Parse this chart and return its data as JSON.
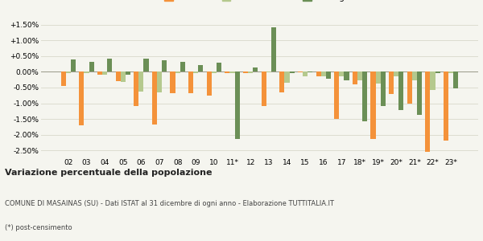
{
  "categories": [
    "02",
    "03",
    "04",
    "05",
    "06",
    "07",
    "08",
    "09",
    "10",
    "11*",
    "12",
    "13",
    "14",
    "15",
    "16",
    "17",
    "18*",
    "19*",
    "20*",
    "21*",
    "22*",
    "23*"
  ],
  "masainas": [
    -0.45,
    -1.7,
    -0.08,
    -0.3,
    -1.1,
    -1.68,
    -0.68,
    -0.68,
    -0.75,
    -0.05,
    -0.05,
    -1.1,
    -0.65,
    -0.02,
    -0.15,
    -1.5,
    -0.4,
    -2.15,
    -0.7,
    -1.0,
    -2.55,
    -2.2
  ],
  "provincia_su": [
    -0.05,
    -0.05,
    -0.08,
    -0.32,
    -0.62,
    -0.65,
    -0.05,
    -0.05,
    -0.05,
    -0.05,
    -0.05,
    -0.02,
    -0.35,
    -0.15,
    -0.15,
    -0.15,
    -0.28,
    -0.38,
    -0.15,
    -0.28,
    -0.58,
    -0.05
  ],
  "sardegna": [
    0.4,
    0.33,
    0.42,
    -0.1,
    0.42,
    0.38,
    0.33,
    0.22,
    0.28,
    -2.15,
    0.15,
    1.43,
    -0.03,
    -0.02,
    -0.22,
    -0.28,
    -1.58,
    -1.08,
    -1.22,
    -1.38,
    -0.03,
    -0.52
  ],
  "color_masainas": "#f4923a",
  "color_provincia": "#b5c98e",
  "color_sardegna": "#6b8f56",
  "background_color": "#f5f5ef",
  "grid_color": "#dcdcd0",
  "title1": "Variazione percentuale della popolazione",
  "title2": "COMUNE DI MASAINAS (SU) - Dati ISTAT al 31 dicembre di ogni anno - Elaborazione TUTTITALIA.IT",
  "title3": "(*) post-censimento",
  "ylim": [
    -2.7,
    1.75
  ],
  "yticks": [
    -2.5,
    -2.0,
    -1.5,
    -1.0,
    -0.5,
    0.0,
    0.5,
    1.0,
    1.5
  ],
  "bar_width": 0.27
}
